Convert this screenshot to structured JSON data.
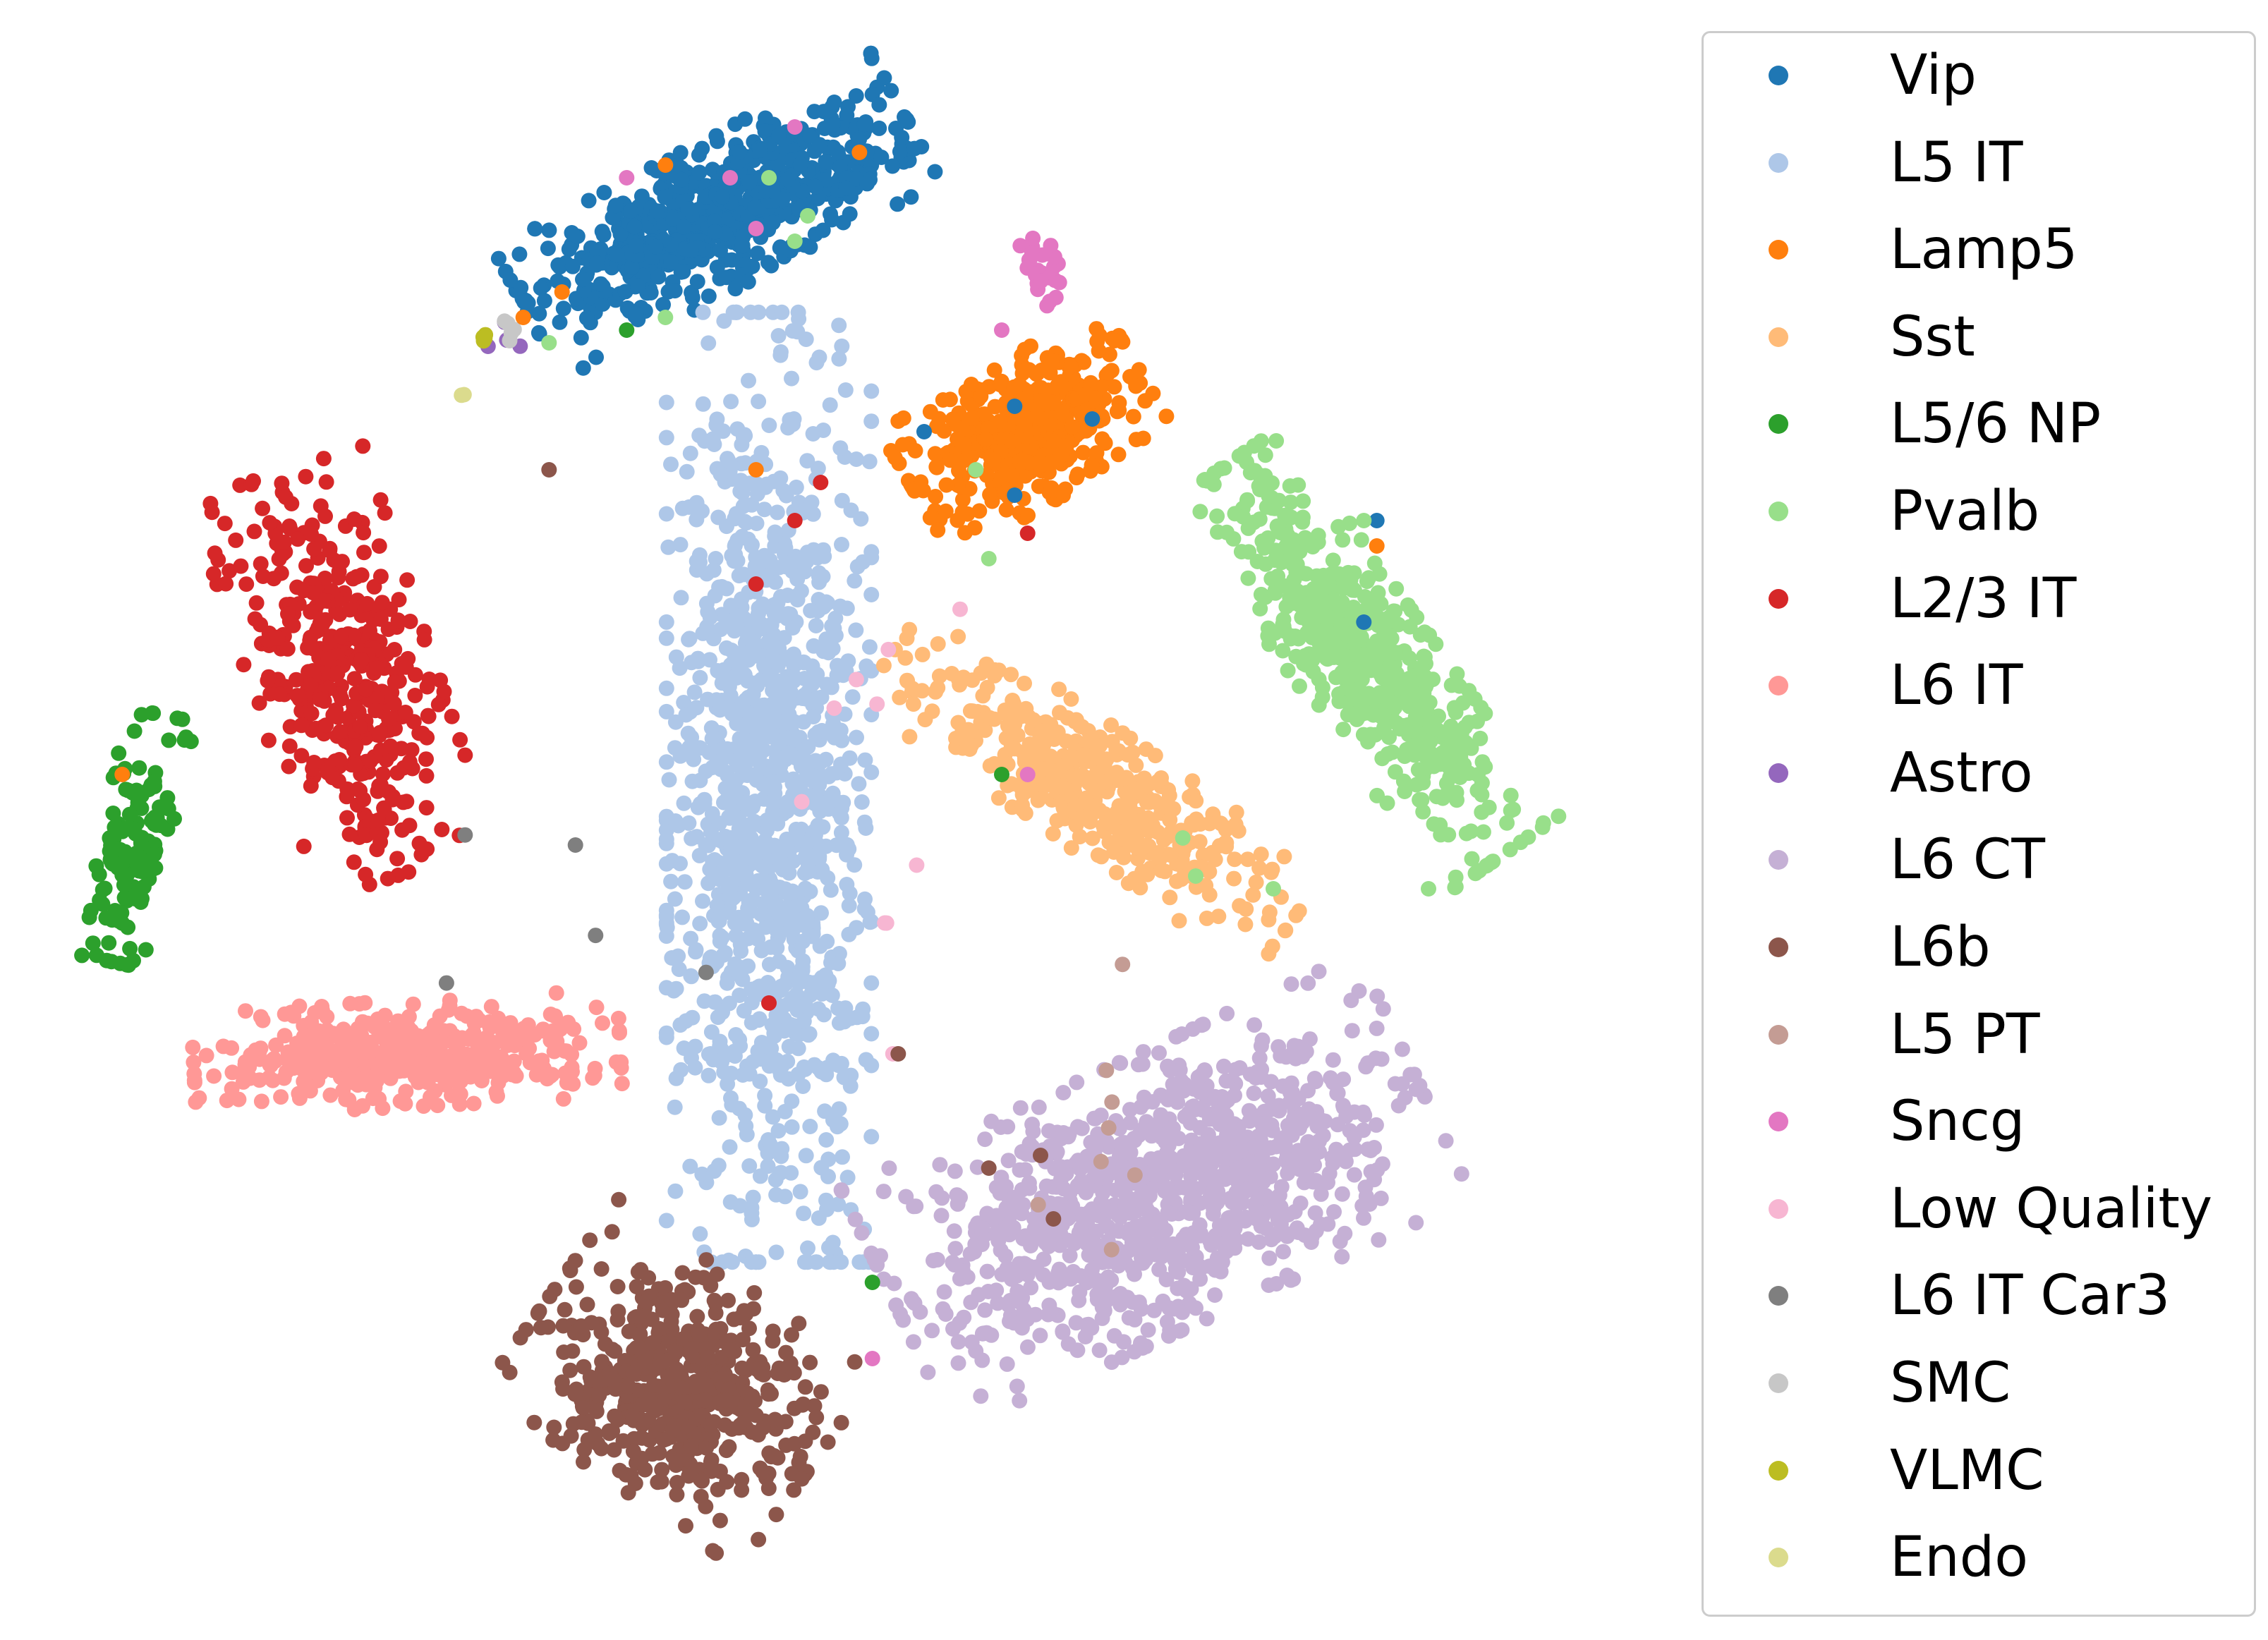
{
  "chart_data": {
    "type": "scatter",
    "title": "",
    "xlabel": "",
    "ylabel": "",
    "axes_visible": false,
    "grid": false,
    "legend_placement": "outside-right",
    "xlim": [
      -60,
      60
    ],
    "ylim": [
      -60,
      60
    ],
    "series": [
      {
        "name": "Vip",
        "color": "#1f77b4",
        "cluster": {
          "x": -10,
          "y": 48,
          "sx": 7.5,
          "sy": 2.6,
          "rot": 28,
          "n": 650
        }
      },
      {
        "name": "L5 IT",
        "color": "#aec7e8",
        "cluster": {
          "x": -6,
          "y": 3,
          "sx": 3.6,
          "sy": 17,
          "rot": 0,
          "n": 1200
        }
      },
      {
        "name": "Lamp5",
        "color": "#ff7f0e",
        "cluster": {
          "x": 14,
          "y": 31,
          "sx": 4.5,
          "sy": 2.6,
          "rot": 30,
          "n": 420
        }
      },
      {
        "name": "Sst",
        "color": "#ffbb78",
        "cluster": {
          "x": 19,
          "y": 3,
          "sx": 8.5,
          "sy": 2.2,
          "rot": -35,
          "n": 420
        }
      },
      {
        "name": "L5/6 NP",
        "color": "#2ca02c",
        "cluster": {
          "x": -55,
          "y": -1,
          "sx": 1.2,
          "sy": 4.5,
          "rot": -12,
          "n": 150
        }
      },
      {
        "name": "Pvalb",
        "color": "#98df8a",
        "cluster": {
          "x": 40,
          "y": 13,
          "sx": 8.5,
          "sy": 2.4,
          "rot": -55,
          "n": 550
        }
      },
      {
        "name": "L2/3 IT",
        "color": "#d62728",
        "cluster": {
          "x": -39,
          "y": 12,
          "sx": 3.2,
          "sy": 7.5,
          "rot": 18,
          "n": 420
        }
      },
      {
        "name": "L6 IT",
        "color": "#ff9896",
        "cluster": {
          "x": -34,
          "y": -18,
          "sx": 7.5,
          "sy": 1.9,
          "rot": 3,
          "n": 450
        }
      },
      {
        "name": "Astro",
        "color": "#9467bd",
        "cluster": {
          "x": -27,
          "y": 38,
          "sx": 0.8,
          "sy": 0.8,
          "rot": 0,
          "n": 4
        }
      },
      {
        "name": "L6 CT",
        "color": "#c5b0d5",
        "cluster": {
          "x": 24,
          "y": -29,
          "sx": 10,
          "sy": 4.8,
          "rot": 25,
          "n": 1000
        }
      },
      {
        "name": "L6b",
        "color": "#8c564b",
        "cluster": {
          "x": -13,
          "y": -44,
          "sx": 5.5,
          "sy": 4.2,
          "rot": -35,
          "n": 480
        }
      },
      {
        "name": "L5 PT",
        "color": "#c49c94",
        "cluster": {
          "x": 19,
          "y": -21,
          "sx": 3,
          "sy": 6,
          "rot": 0,
          "n": 8
        }
      },
      {
        "name": "Sncg",
        "color": "#e377c2",
        "cluster": {
          "x": 15,
          "y": 44,
          "sx": 0.8,
          "sy": 1.4,
          "rot": 0,
          "n": 30
        }
      },
      {
        "name": "Low Quality",
        "color": "#f7b6d2",
        "cluster": {
          "x": 3,
          "y": 4,
          "sx": 3,
          "sy": 10,
          "rot": 0,
          "n": 10
        }
      },
      {
        "name": "L6 IT Car3",
        "color": "#7f7f7f",
        "cluster": {
          "x": -18,
          "y": -10,
          "sx": 8,
          "sy": 8,
          "rot": 0,
          "n": 5
        }
      },
      {
        "name": "SMC",
        "color": "#c7c7c7",
        "cluster": {
          "x": -26,
          "y": 39,
          "sx": 0.3,
          "sy": 0.4,
          "rot": 0,
          "n": 5
        }
      },
      {
        "name": "VLMC",
        "color": "#bcbd22",
        "cluster": {
          "x": -28,
          "y": 38.5,
          "sx": 0.3,
          "sy": 0.5,
          "rot": 0,
          "n": 5
        }
      },
      {
        "name": "Endo",
        "color": "#dbdb8d",
        "cluster": {
          "x": -29.5,
          "y": 34,
          "sx": 0.15,
          "sy": 0.15,
          "rot": 0,
          "n": 2
        }
      }
    ],
    "outliers": [
      {
        "series": "Vip",
        "points": [
          [
            6,
            31
          ],
          [
            13,
            33
          ],
          [
            19,
            32
          ],
          [
            41,
            24
          ],
          [
            40,
            16
          ],
          [
            13,
            26
          ]
        ]
      },
      {
        "series": "Lamp5",
        "points": [
          [
            -14,
            52
          ],
          [
            -25,
            40
          ],
          [
            -7,
            28
          ],
          [
            1,
            53
          ],
          [
            -22,
            42
          ],
          [
            41,
            22
          ],
          [
            -56,
            4
          ]
        ]
      },
      {
        "name_ref": "Pvalb",
        "series": "Pvalb",
        "points": [
          [
            -6,
            51
          ],
          [
            -4,
            46
          ],
          [
            -3,
            48
          ],
          [
            10,
            28
          ],
          [
            -14,
            40
          ],
          [
            26,
            -1
          ],
          [
            33,
            -5
          ],
          [
            45,
            -5
          ],
          [
            27,
            -4
          ],
          [
            40,
            24
          ],
          [
            -23,
            38
          ],
          [
            11,
            21
          ]
        ]
      },
      {
        "series": "Sncg",
        "points": [
          [
            -17,
            51
          ],
          [
            -9,
            51
          ],
          [
            -7,
            47
          ],
          [
            -4,
            55
          ],
          [
            12,
            39
          ],
          [
            2,
            -42
          ],
          [
            14,
            4
          ]
        ]
      },
      {
        "series": "L2/3 IT",
        "points": [
          [
            -2,
            27
          ],
          [
            -7,
            19
          ],
          [
            -4,
            24
          ],
          [
            14,
            23
          ],
          [
            -6,
            -14
          ]
        ]
      },
      {
        "series": "L6b",
        "points": [
          [
            -23,
            28
          ],
          [
            4,
            -18
          ],
          [
            11,
            -27
          ],
          [
            16,
            -31
          ],
          [
            15,
            -26
          ]
        ]
      },
      {
        "series": "L5/6 NP",
        "points": [
          [
            -17,
            39
          ],
          [
            12,
            4
          ],
          [
            2,
            -36
          ]
        ]
      }
    ]
  }
}
